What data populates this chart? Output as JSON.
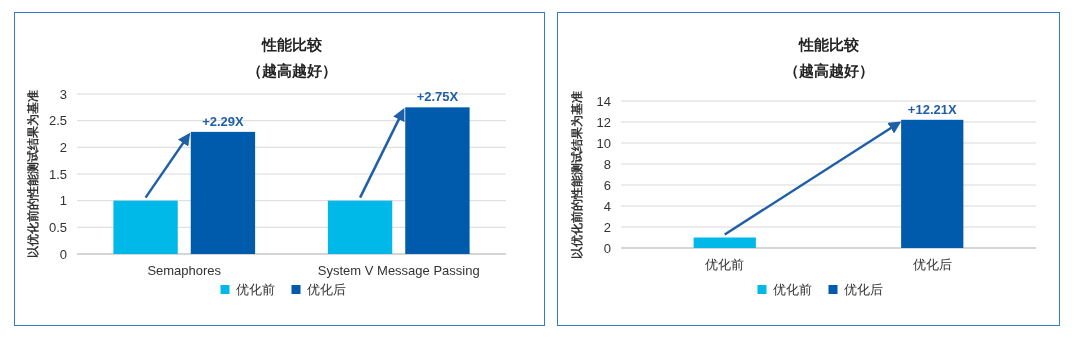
{
  "chart_data": [
    {
      "type": "bar",
      "title": "性能比较",
      "subtitle": "（越高越好）",
      "ylabel": "以优化前的性能测试结果为基准",
      "categories": [
        "Semaphores",
        "System V Message Passing"
      ],
      "series": [
        {
          "name": "优化前",
          "color": "#00b9e8",
          "values": [
            1,
            1
          ]
        },
        {
          "name": "优化后",
          "color": "#005bac",
          "values": [
            2.29,
            2.75
          ]
        }
      ],
      "ylim": [
        0,
        3
      ],
      "yticks": [
        0,
        0.5,
        1,
        1.5,
        2,
        2.5,
        3
      ],
      "grid": "y",
      "legend": "bottom",
      "annotations": [
        "+2.29X",
        "+2.75X"
      ]
    },
    {
      "type": "bar",
      "title": "性能比较",
      "subtitle": "（越高越好）",
      "ylabel": "以优化前的性能测试结果为基准",
      "categories": [
        "优化前",
        "优化后"
      ],
      "series": [
        {
          "name": "优化前",
          "color": "#00b9e8",
          "values": [
            1,
            null
          ]
        },
        {
          "name": "优化后",
          "color": "#005bac",
          "values": [
            null,
            12.21
          ]
        }
      ],
      "ylim": [
        0,
        14
      ],
      "yticks": [
        0,
        2,
        4,
        6,
        8,
        10,
        12,
        14
      ],
      "grid": "y",
      "legend": "bottom",
      "annotations": [
        {
          "text": "+12.21X",
          "x": "优化后",
          "y": 12.21
        }
      ]
    }
  ]
}
